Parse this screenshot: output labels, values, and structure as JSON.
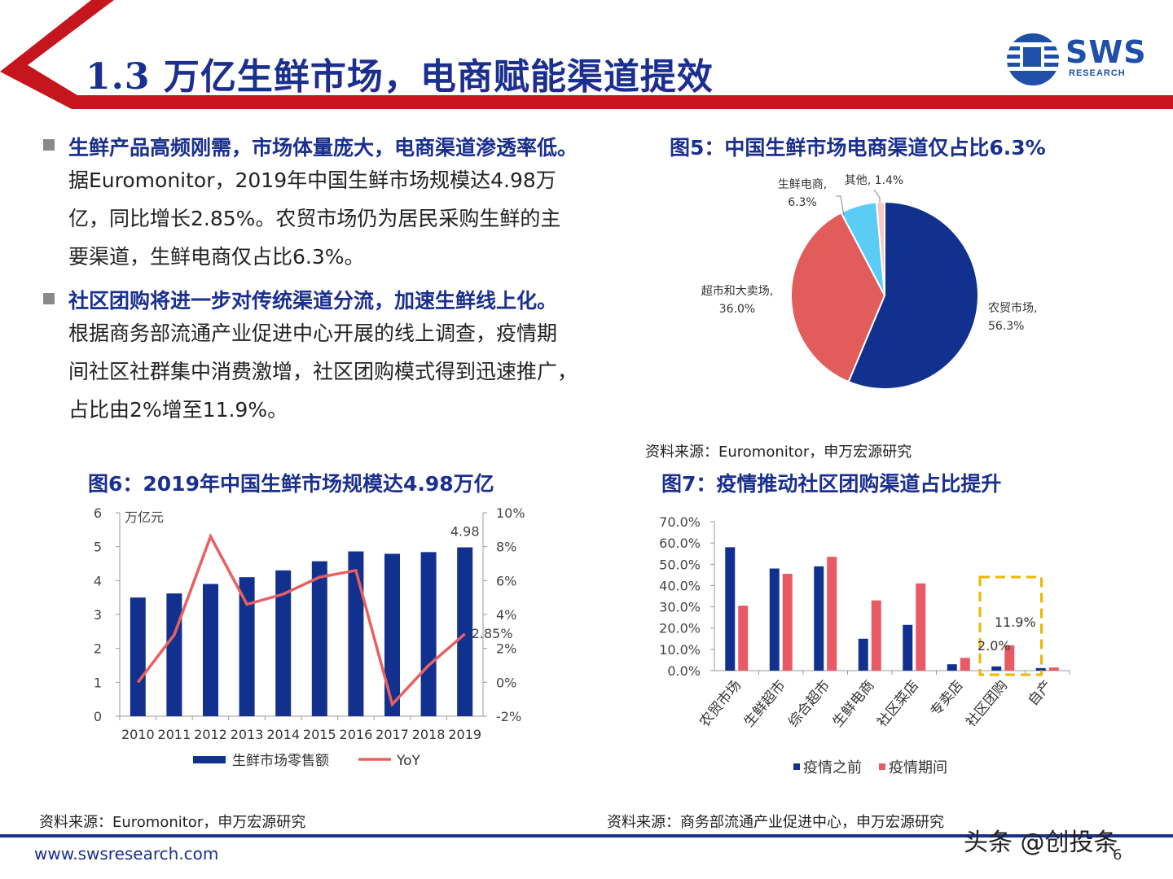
{
  "header": {
    "title": "1.3 万亿生鲜市场，电商赋能渠道提效",
    "logo_text": "SWS",
    "logo_sub": "RESEARCH",
    "colors": {
      "red": "#c4161c",
      "navy": "#1b2f8f"
    }
  },
  "bullets": [
    {
      "head": "生鲜产品高频刚需，市场体量庞大，电商渠道渗透率低。",
      "lines": [
        "据Euromonitor，2019年中国生鲜市场规模达4.98万",
        "亿，同比增长2.85%。农贸市场仍为居民采购生鲜的主",
        "要渠道，生鲜电商仅占比6.3%。"
      ]
    },
    {
      "head": "社区团购将进一步对传统渠道分流，加速生鲜线上化。",
      "lines": [
        "根据商务部流通产业促进中心开展的线上调查，疫情期",
        "间社区社群集中消费激增，社区团购模式得到迅速推广，",
        "占比由2%增至11.9%。"
      ]
    }
  ],
  "figures": {
    "fig5_title": "图5：中国生鲜市场电商渠道仅占比6.3%",
    "fig5_source": "资料来源：Euromonitor，申万宏源研究",
    "fig6_title": "图6：2019年中国生鲜市场规模达4.98万亿",
    "fig6_source": "资料来源：Euromonitor，申万宏源研究",
    "fig7_title": "图7：疫情推动社区团购渠道占比提升",
    "fig7_source": "资料来源：商务部流通产业促进中心，申万宏源研究"
  },
  "footer": {
    "url": "www.swsresearch.com",
    "page": "6",
    "watermark": "头条 @创投条"
  },
  "chart_data": [
    {
      "type": "pie",
      "slices": [
        {
          "label": "农贸市场",
          "value": 56.3,
          "value_label": "56.3%",
          "color": "#12318f"
        },
        {
          "label": "超市和大卖场",
          "value": 36.0,
          "value_label": "36.0%",
          "color": "#e25c5c"
        },
        {
          "label": "生鲜电商",
          "value": 6.3,
          "value_label": "6.3%",
          "color": "#5bcdf4"
        },
        {
          "label": "其他",
          "value": 1.4,
          "value_label": "1.4%",
          "color": "#f6c9c9"
        }
      ]
    },
    {
      "type": "bar",
      "categories": [
        "2010",
        "2011",
        "2012",
        "2013",
        "2014",
        "2015",
        "2016",
        "2017",
        "2018",
        "2019"
      ],
      "series": [
        {
          "name": "生鲜市场零售额",
          "type": "bar",
          "axis": "left",
          "color": "#12318f",
          "values": [
            3.5,
            3.62,
            3.9,
            4.1,
            4.3,
            4.57,
            4.86,
            4.79,
            4.84,
            4.98
          ]
        },
        {
          "name": "YoY",
          "type": "line",
          "axis": "right",
          "color": "#e86060",
          "values": [
            0.0,
            2.8,
            8.6,
            4.6,
            5.2,
            6.2,
            6.6,
            -1.3,
            1.0,
            2.85
          ]
        }
      ],
      "left_axis": {
        "unit": "万亿元",
        "ylim": [
          0,
          6
        ],
        "ticks": [
          "0",
          "1",
          "2",
          "3",
          "4",
          "5",
          "6"
        ]
      },
      "right_axis": {
        "ylim": [
          -2,
          10
        ],
        "ticks": [
          "-2%",
          "0%",
          "2%",
          "4%",
          "6%",
          "8%",
          "10%"
        ]
      },
      "annotations": [
        "4.98",
        "2.85%"
      ]
    },
    {
      "type": "bar",
      "categories": [
        "农贸市场",
        "生鲜超市",
        "综合超市",
        "生鲜电商",
        "社区菜店",
        "专卖店",
        "社区团购",
        "自产"
      ],
      "series": [
        {
          "name": "疫情之前",
          "color": "#12318f",
          "values": [
            58.0,
            48.0,
            49.0,
            15.0,
            21.5,
            3.0,
            2.0,
            1.2
          ]
        },
        {
          "name": "疫情期间",
          "color": "#e85a64",
          "values": [
            30.5,
            45.5,
            53.5,
            33.0,
            41.0,
            6.0,
            11.9,
            1.5
          ]
        }
      ],
      "ylim": [
        0,
        70
      ],
      "ticks": [
        "0.0%",
        "10.0%",
        "20.0%",
        "30.0%",
        "40.0%",
        "50.0%",
        "60.0%",
        "70.0%"
      ],
      "annotations": [
        "11.9%",
        "2.0%"
      ],
      "legend": "bottom"
    }
  ]
}
